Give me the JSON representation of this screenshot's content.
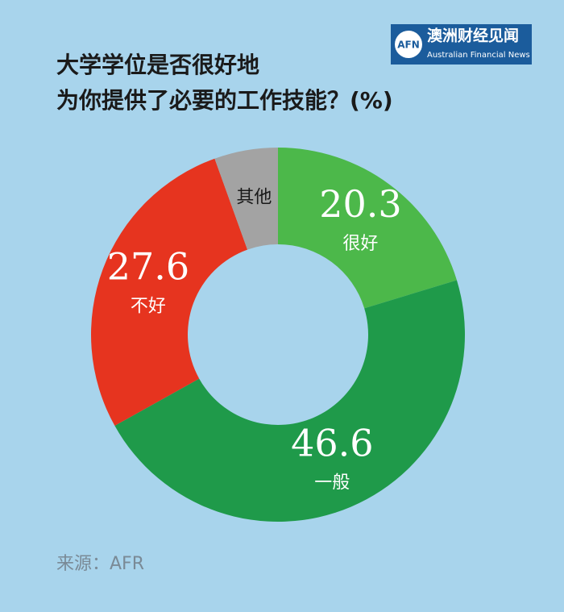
{
  "chart_data": {
    "type": "donut",
    "title": [
      "大学学位是否很好地",
      "为你提供了必要的工作技能？(%)"
    ],
    "categories": [
      "很好",
      "一般",
      "不好",
      "其他"
    ],
    "values": [
      20.3,
      46.6,
      27.6,
      5.5
    ],
    "value_labels": [
      "20.3",
      "46.6",
      "27.6",
      null
    ],
    "colors": [
      "#4cb84a",
      "#1f9a4a",
      "#e6341f",
      "#a3a3a3"
    ],
    "category_label_colors": [
      "#ffffff",
      "#ffffff",
      "#ffffff",
      "#1a1a1a"
    ],
    "source": "来源：AFR",
    "logo": {
      "mark": "AFN",
      "name": "澳洲财经见闻",
      "english": "Australian Financial News"
    }
  }
}
